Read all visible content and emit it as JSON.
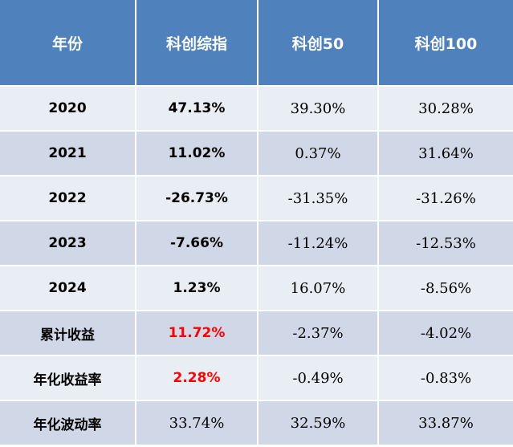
{
  "table": {
    "headers": [
      "年份",
      "科创综指",
      "科创50",
      "科创100"
    ],
    "rows": [
      {
        "label": "2020",
        "c1": "47.13%",
        "c2": "39.30%",
        "c3": "30.28%"
      },
      {
        "label": "2021",
        "c1": "11.02%",
        "c2": "0.37%",
        "c3": "31.64%"
      },
      {
        "label": "2022",
        "c1": "-26.73%",
        "c2": "-31.35%",
        "c3": "-31.26%"
      },
      {
        "label": "2023",
        "c1": "-7.66%",
        "c2": "-11.24%",
        "c3": "-12.53%"
      },
      {
        "label": "2024",
        "c1": "1.23%",
        "c2": "16.07%",
        "c3": "-8.56%"
      },
      {
        "label": "累计收益",
        "c1": "11.72%",
        "c2": "-2.37%",
        "c3": "-4.02%"
      },
      {
        "label": "年化收益率",
        "c1": "2.28%",
        "c2": "-0.49%",
        "c3": "-0.83%"
      },
      {
        "label": "年化波动率",
        "c1": "33.74%",
        "c2": "32.59%",
        "c3": "33.87%"
      }
    ]
  },
  "colors": {
    "header_bg": "#4f81bd",
    "row_light": "#e9edf4",
    "row_dark": "#d0d8e8",
    "highlight": "#ff0000"
  }
}
